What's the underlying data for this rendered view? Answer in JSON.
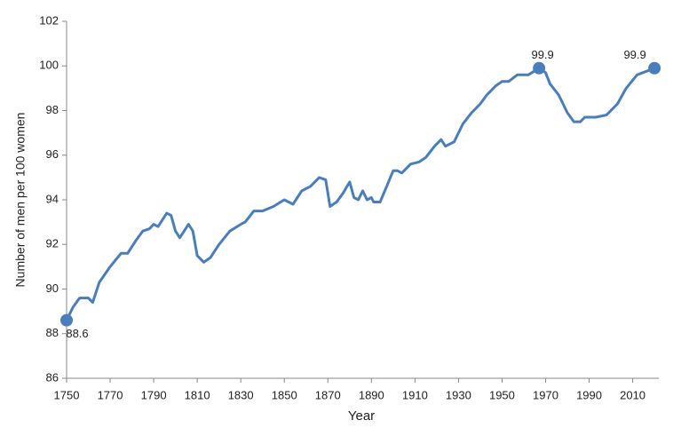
{
  "chart_data": {
    "type": "line",
    "x_label": "Year",
    "y_label": "Number of men per 100 women",
    "x": [
      1750,
      1753,
      1756,
      1760,
      1762,
      1765,
      1770,
      1775,
      1778,
      1782,
      1785,
      1788,
      1790,
      1792,
      1796,
      1798,
      1800,
      1802,
      1804,
      1806,
      1808,
      1810,
      1813,
      1816,
      1820,
      1825,
      1830,
      1832,
      1836,
      1840,
      1845,
      1850,
      1854,
      1858,
      1862,
      1866,
      1869,
      1871,
      1874,
      1877,
      1880,
      1882,
      1884,
      1886,
      1888,
      1890,
      1891,
      1894,
      1897,
      1900,
      1902,
      1904,
      1908,
      1912,
      1915,
      1919,
      1922,
      1924,
      1928,
      1932,
      1936,
      1940,
      1943,
      1947,
      1950,
      1953,
      1957,
      1962,
      1967,
      1970,
      1972,
      1976,
      1980,
      1983,
      1986,
      1988,
      1993,
      1998,
      2003,
      2007,
      2012,
      2020
    ],
    "series": [
      {
        "color": "#4a7ebb",
        "values": [
          88.6,
          89.2,
          89.6,
          89.6,
          89.4,
          90.3,
          91.0,
          91.6,
          91.6,
          92.2,
          92.6,
          92.7,
          92.9,
          92.8,
          93.4,
          93.3,
          92.6,
          92.3,
          92.6,
          92.9,
          92.6,
          91.5,
          91.2,
          91.4,
          92.0,
          92.6,
          92.9,
          93.0,
          93.5,
          93.5,
          93.7,
          94.0,
          93.8,
          94.4,
          94.6,
          95.0,
          94.9,
          93.7,
          93.9,
          94.3,
          94.8,
          94.1,
          94.0,
          94.4,
          94.0,
          94.1,
          93.9,
          93.9,
          94.6,
          95.3,
          95.3,
          95.2,
          95.6,
          95.7,
          95.9,
          96.4,
          96.7,
          96.4,
          96.6,
          97.4,
          97.9,
          98.3,
          98.7,
          99.1,
          99.3,
          99.3,
          99.6,
          99.6,
          99.9,
          99.7,
          99.2,
          98.7,
          97.9,
          97.5,
          97.5,
          97.7,
          97.7,
          97.8,
          98.3,
          99.0,
          99.6,
          99.9
        ]
      }
    ],
    "points": [
      {
        "x": 1750,
        "y": 88.6
      },
      {
        "x": 1967,
        "y": 99.9
      },
      {
        "x": 2020,
        "y": 99.9
      }
    ],
    "xlim": [
      1750,
      2022
    ],
    "xticks": [
      1750,
      1770,
      1790,
      1810,
      1830,
      1850,
      1870,
      1890,
      1910,
      1930,
      1950,
      1970,
      1990,
      2010
    ],
    "ylim": [
      86,
      102
    ],
    "yticks": [
      86,
      88,
      90,
      92,
      94,
      96,
      98,
      100,
      102
    ]
  }
}
